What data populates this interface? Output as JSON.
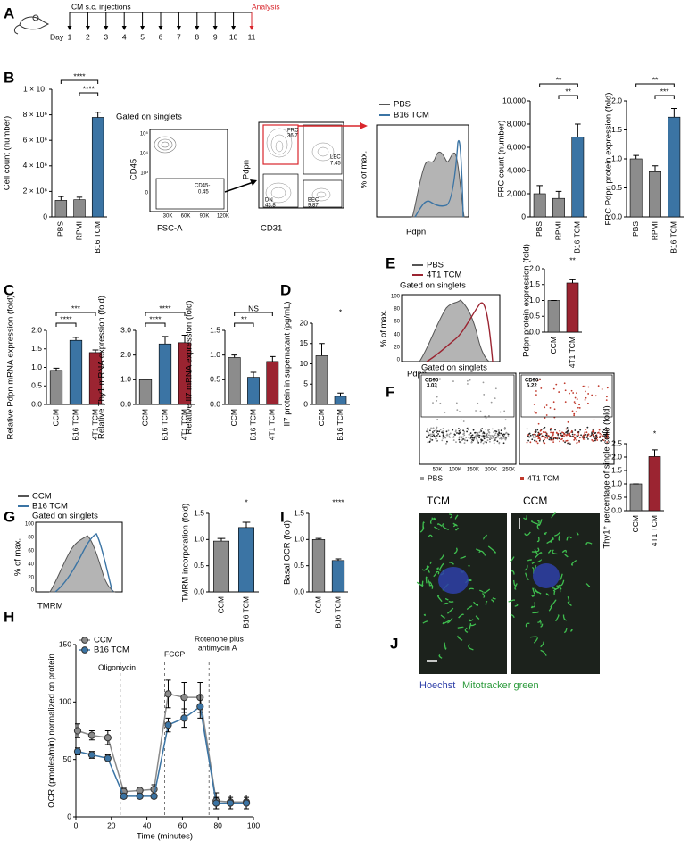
{
  "panels": [
    "A",
    "B",
    "C",
    "D",
    "E",
    "F",
    "G",
    "H",
    "I",
    "J"
  ],
  "timeline": {
    "title": "CM s.c. injections",
    "day_label": "Day",
    "days": [
      "1",
      "2",
      "3",
      "4",
      "5",
      "6",
      "7",
      "8",
      "9",
      "10",
      "11"
    ],
    "analysis": "Analysis"
  },
  "flow": {
    "b_gate": "Gated on singlets",
    "b_scatter_y": "CD45",
    "b_scatter_x": "FSC-A",
    "b_scatter_xticks": [
      "30K",
      "60K",
      "90K",
      "120K"
    ],
    "b_scatter_yticks": [
      "10⁵",
      "10⁴",
      "10³",
      "0"
    ],
    "b_gate_cd45": "CD45-",
    "b_gate_cd45_pct": "0.45",
    "b_contour_y": "Pdpn",
    "b_contour_x": "CD31",
    "b_gates": [
      [
        "FRC",
        "36.7"
      ],
      [
        "LEC",
        "7.45"
      ],
      [
        "DN",
        "43.8"
      ],
      [
        "BEC",
        "9.87"
      ]
    ],
    "b_hist_y": "% of max.",
    "b_hist_x": "Pdpn",
    "b_hist_legend": [
      "PBS",
      "B16 TCM"
    ],
    "e_legend": [
      "PBS",
      "4T1 TCM"
    ],
    "e_gate": "Gated on singlets",
    "e_hist_y": "% of max.",
    "e_hist_x": "Pdpn",
    "e_hist_yticks": [
      "100",
      "80",
      "60",
      "40",
      "20",
      "0"
    ],
    "f_gate": "Gated on singlets",
    "f_gates": [
      [
        "CD90⁺",
        "3.03"
      ],
      [
        "CD90⁺",
        "5.22"
      ]
    ],
    "f_legend": [
      "PBS",
      "4T1 TCM"
    ],
    "f_xticks": [
      "50K",
      "100K",
      "150K",
      "200K",
      "250K"
    ],
    "g_legend": [
      "CCM",
      "B16 TCM"
    ],
    "g_gate": "Gated on singlets",
    "g_hist_y": "% of max.",
    "g_hist_x": "TMRM",
    "g_hist_yticks": [
      "100",
      "80",
      "60",
      "40",
      "20",
      "0"
    ]
  },
  "images": {
    "tcm": "TCM",
    "ccm": "CCM",
    "stain1": "Hoechst",
    "stain2": "Mitotracker green"
  },
  "chart_data": [
    {
      "type": "bar",
      "ylabel": "Cell count (number)",
      "categories": [
        "PBS",
        "RPMI",
        "B16 TCM"
      ],
      "values": [
        1300000,
        1350000,
        7800000
      ],
      "errors": [
        300000,
        200000,
        400000
      ],
      "colors": [
        "#8c8c8c",
        "#8c8c8c",
        "#3b74a4"
      ],
      "ylim": [
        0,
        10000000
      ],
      "yticks": [
        0,
        {
          "value": 2000000,
          "label": "2 × 10⁶"
        },
        {
          "value": 4000000,
          "label": "4 × 10⁶"
        },
        {
          "value": 6000000,
          "label": "6 × 10⁶"
        },
        {
          "value": 8000000,
          "label": "8 × 10⁶"
        },
        {
          "value": 10000000,
          "label": "1 × 10⁷"
        }
      ],
      "annotations": [
        "****",
        "****"
      ]
    },
    {
      "type": "bar",
      "ylabel": "FRC count (number)",
      "categories": [
        "PBS",
        "RPMI",
        "B16 TCM"
      ],
      "values": [
        2000,
        1600,
        6900
      ],
      "errors": [
        700,
        600,
        1100
      ],
      "colors": [
        "#8c8c8c",
        "#8c8c8c",
        "#3b74a4"
      ],
      "ylim": [
        0,
        10000
      ],
      "yticks": [
        0,
        {
          "value": 2000,
          "label": "2,000"
        },
        {
          "value": 4000,
          "label": "4,000"
        },
        {
          "value": 6000,
          "label": "6,000"
        },
        {
          "value": 8000,
          "label": "8,000"
        },
        {
          "value": 10000,
          "label": "10,000"
        }
      ],
      "annotations": [
        "**",
        "**"
      ]
    },
    {
      "type": "bar",
      "ylabel": "FRC Pdpn protein expression (fold)",
      "categories": [
        "PBS",
        "RPMI",
        "B16 TCM"
      ],
      "values": [
        1.0,
        0.78,
        1.72
      ],
      "errors": [
        0.06,
        0.1,
        0.15
      ],
      "colors": [
        "#8c8c8c",
        "#8c8c8c",
        "#3b74a4"
      ],
      "ylim": [
        0,
        2
      ],
      "yticks": [
        {
          "value": 0,
          "label": "0.0"
        },
        0.5,
        {
          "value": 1,
          "label": "1.0"
        },
        1.5,
        {
          "value": 2,
          "label": "2.0"
        }
      ],
      "annotations": [
        "**",
        "***"
      ]
    },
    {
      "type": "bar",
      "ylabel": "Relative Pdpn mRNA expression (fold)",
      "categories": [
        "CCM",
        "B16 TCM",
        "4T1 TCM"
      ],
      "values": [
        0.92,
        1.73,
        1.4
      ],
      "errors": [
        0.06,
        0.08,
        0.07
      ],
      "colors": [
        "#8c8c8c",
        "#3b74a4",
        "#9b2431"
      ],
      "ylim": [
        0,
        2
      ],
      "yticks": [
        {
          "value": 0,
          "label": "0.0"
        },
        0.5,
        {
          "value": 1,
          "label": "1.0"
        },
        1.5,
        {
          "value": 2,
          "label": "2.0"
        }
      ],
      "annotations": [
        "***",
        "****"
      ]
    },
    {
      "type": "bar",
      "ylabel": "Relative Thy1 mRNA expression (fold)",
      "categories": [
        "CCM",
        "B16 TCM",
        "4T1 TCM"
      ],
      "values": [
        1.0,
        2.45,
        2.5
      ],
      "errors": [
        0.02,
        0.3,
        0.3
      ],
      "colors": [
        "#8c8c8c",
        "#3b74a4",
        "#9b2431"
      ],
      "ylim": [
        0,
        3
      ],
      "yticks": [
        {
          "value": 0,
          "label": "0.0"
        },
        {
          "value": 1,
          "label": "1.0"
        },
        {
          "value": 2,
          "label": "2.0"
        },
        {
          "value": 3,
          "label": "3.0"
        }
      ],
      "annotations": [
        "****",
        "****"
      ]
    },
    {
      "type": "bar",
      "ylabel": "Relative Il7 mRNA expression (fold)",
      "categories": [
        "CCM",
        "B16 TCM",
        "4T1 TCM"
      ],
      "values": [
        0.95,
        0.55,
        0.87
      ],
      "errors": [
        0.05,
        0.1,
        0.1
      ],
      "colors": [
        "#8c8c8c",
        "#3b74a4",
        "#9b2431"
      ],
      "ylim": [
        0,
        1.5
      ],
      "yticks": [
        {
          "value": 0,
          "label": "0.0"
        },
        0.5,
        {
          "value": 1,
          "label": "1.0"
        },
        1.5
      ],
      "annotations": [
        "NS",
        "**"
      ]
    },
    {
      "type": "bar",
      "ylabel": "Il7 protein in supernatant (pg/mL)",
      "categories": [
        "CCM",
        "B16 TCM"
      ],
      "values": [
        12,
        2
      ],
      "errors": [
        3,
        0.8
      ],
      "colors": [
        "#8c8c8c",
        "#3b74a4"
      ],
      "ylim": [
        0,
        20
      ],
      "yticks": [
        0,
        5,
        10,
        15,
        20
      ],
      "annotations": [
        "*"
      ]
    },
    {
      "type": "bar",
      "ylabel": "Pdpn protein expression (fold)",
      "categories": [
        "CCM",
        "4T1 TCM"
      ],
      "values": [
        1.0,
        1.55
      ],
      "errors": [
        0,
        0.1
      ],
      "colors": [
        "#8c8c8c",
        "#9b2431"
      ],
      "ylim": [
        0,
        2
      ],
      "yticks": [
        {
          "value": 0,
          "label": "0.0"
        },
        0.5,
        {
          "value": 1,
          "label": "1.0"
        },
        1.5,
        {
          "value": 2,
          "label": "2.0"
        }
      ],
      "annotations": [
        "**"
      ]
    },
    {
      "type": "bar",
      "ylabel": "Thy1⁺ percentage of single cells (fold)",
      "categories": [
        "CCM",
        "4T1 TCM"
      ],
      "values": [
        1.0,
        2.02
      ],
      "errors": [
        0,
        0.25
      ],
      "colors": [
        "#8c8c8c",
        "#9b2431"
      ],
      "ylim": [
        0,
        2.5
      ],
      "yticks": [
        {
          "value": 0,
          "label": "0.0"
        },
        0.5,
        {
          "value": 1,
          "label": "1.0"
        },
        1.5,
        {
          "value": 2,
          "label": "2.0"
        },
        2.5
      ],
      "annotations": [
        "*"
      ]
    },
    {
      "type": "bar",
      "ylabel": "TMRM incorporation (fold)",
      "categories": [
        "CCM",
        "B16 TCM"
      ],
      "values": [
        0.97,
        1.23
      ],
      "errors": [
        0.05,
        0.1
      ],
      "colors": [
        "#8c8c8c",
        "#3b74a4"
      ],
      "ylim": [
        0,
        1.5
      ],
      "yticks": [
        {
          "value": 0,
          "label": "0.0"
        },
        0.5,
        {
          "value": 1,
          "label": "1.0"
        },
        1.5
      ],
      "annotations": [
        "*"
      ]
    },
    {
      "type": "bar",
      "ylabel": "Basal OCR (fold)",
      "categories": [
        "CCM",
        "B16 TCM"
      ],
      "values": [
        1.0,
        0.6
      ],
      "errors": [
        0.02,
        0.03
      ],
      "colors": [
        "#8c8c8c",
        "#3b74a4"
      ],
      "ylim": [
        0,
        1.5
      ],
      "yticks": [
        {
          "value": 0,
          "label": "0.0"
        },
        0.5,
        {
          "value": 1,
          "label": "1.0"
        },
        1.5
      ],
      "annotations": [
        "****"
      ]
    },
    {
      "type": "line",
      "ylabel": "OCR (pmoles/min) normalized on protein",
      "xlabel": "Time (minutes)",
      "x": [
        1,
        9,
        18,
        27,
        36,
        44,
        52,
        61,
        70,
        79,
        87,
        96
      ],
      "series": [
        {
          "name": "CCM",
          "color": "#8a8a8a",
          "values": [
            75,
            71,
            69,
            22,
            23,
            24,
            107,
            104,
            104,
            14,
            13,
            13
          ],
          "errors": [
            6,
            4,
            6,
            3,
            3,
            4,
            12,
            13,
            13,
            7,
            6,
            6
          ]
        },
        {
          "name": "B16 TCM",
          "color": "#3b74a4",
          "values": [
            57,
            54,
            51,
            18,
            18,
            18,
            80,
            86,
            96,
            12,
            12,
            12
          ],
          "errors": [
            3,
            3,
            3,
            2,
            2,
            2,
            6,
            8,
            10,
            5,
            5,
            5
          ]
        }
      ],
      "xlim": [
        0,
        100
      ],
      "xticks": [
        0,
        20,
        40,
        60,
        80,
        100
      ],
      "ylim": [
        0,
        150
      ],
      "yticks": [
        0,
        50,
        100,
        150
      ],
      "vlines": [
        25,
        50,
        75
      ],
      "annotations": [
        "Oligomycin",
        "FCCP",
        "Rotenone plus",
        "antimycin A"
      ]
    }
  ]
}
